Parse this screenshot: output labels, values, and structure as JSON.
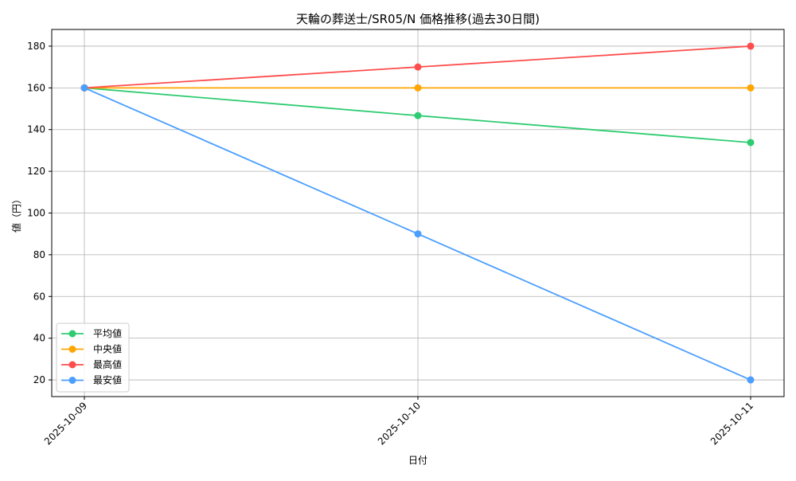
{
  "chart_data": {
    "type": "line",
    "title": "天輪の葬送士/SR05/N 価格推移(過去30日間)",
    "xlabel": "日付",
    "ylabel": "値（円）",
    "categories": [
      "2025-10-09",
      "2025-10-10",
      "2025-10-11"
    ],
    "ylim": [
      12,
      188
    ],
    "yticks": [
      20,
      40,
      60,
      80,
      100,
      120,
      140,
      160,
      180
    ],
    "grid": true,
    "legend_position": "lower-left",
    "series": [
      {
        "name": "平均値",
        "color": "#2ecc71",
        "values": [
          160,
          146.7,
          133.8
        ]
      },
      {
        "name": "中央値",
        "color": "#ffa500",
        "values": [
          160,
          160,
          160
        ]
      },
      {
        "name": "最高値",
        "color": "#ff4d4d",
        "values": [
          160,
          170,
          180
        ]
      },
      {
        "name": "最安値",
        "color": "#4a9eff",
        "values": [
          160,
          90,
          20
        ]
      }
    ]
  }
}
